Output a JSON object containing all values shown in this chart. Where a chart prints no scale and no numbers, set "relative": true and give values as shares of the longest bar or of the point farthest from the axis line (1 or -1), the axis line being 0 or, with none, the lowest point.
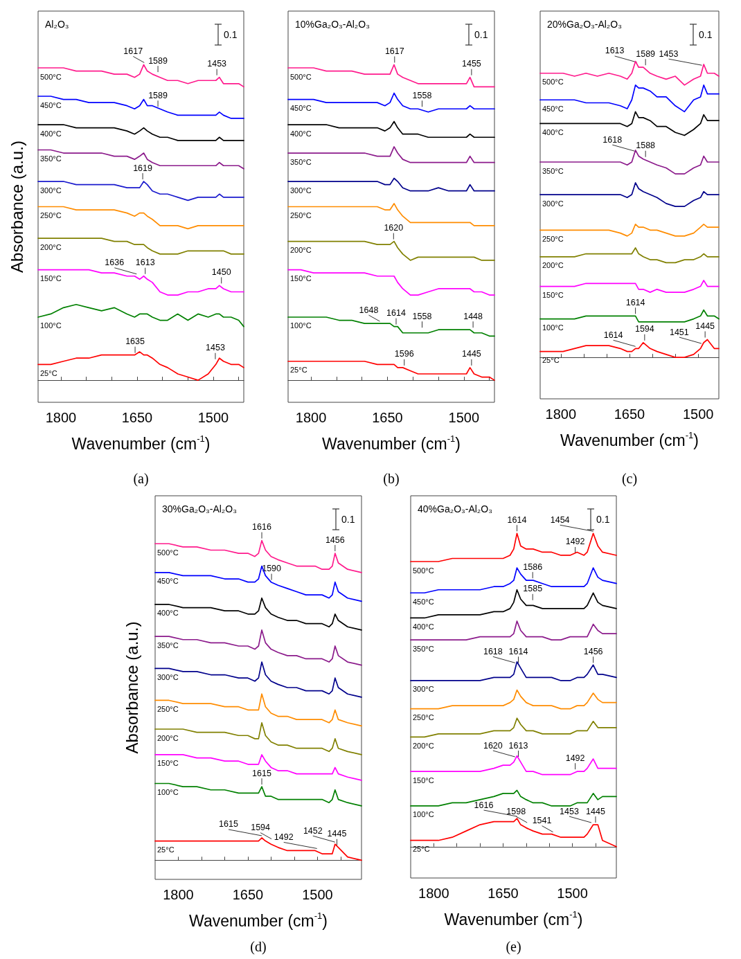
{
  "chart_data": [
    {
      "type": "line",
      "title": "Al₂O₃",
      "xlabel": "Wavenumber (cm$^{-1}$)",
      "ylabel": "Absorbance (a.u.)",
      "relative": true,
      "xlim": [
        1845,
        1440
      ],
      "xticks": [
        1800,
        1650,
        1500,
        {
          "value": 1750,
          "label": null
        },
        {
          "value": 1700,
          "label": null
        },
        {
          "value": 1600,
          "label": null
        },
        {
          "value": 1550,
          "label": null
        },
        {
          "value": 1450,
          "label": null
        }
      ],
      "x": [
        1845,
        1820,
        1795,
        1770,
        1745,
        1720,
        1695,
        1670,
        1655,
        1645,
        1637,
        1630,
        1620,
        1605,
        1590,
        1570,
        1550,
        1530,
        1510,
        1495,
        1488,
        1480,
        1465,
        1450,
        1440
      ],
      "series": [
        {
          "name": "500°C",
          "color": "#ff1a8c",
          "values": [
            0.99,
            0.99,
            0.99,
            0.98,
            0.98,
            0.98,
            0.97,
            0.97,
            0.96,
            0.97,
            1.0,
            0.98,
            0.97,
            0.96,
            0.95,
            0.95,
            0.94,
            0.95,
            0.95,
            0.95,
            0.96,
            0.94,
            0.94,
            0.94,
            0.93
          ]
        },
        {
          "name": "450°C",
          "color": "#0000ff",
          "values": [
            0.9,
            0.9,
            0.89,
            0.89,
            0.88,
            0.88,
            0.88,
            0.87,
            0.86,
            0.87,
            0.89,
            0.87,
            0.87,
            0.86,
            0.85,
            0.84,
            0.84,
            0.84,
            0.84,
            0.84,
            0.85,
            0.84,
            0.83,
            0.83,
            0.83
          ]
        },
        {
          "name": "400°C",
          "color": "#000000",
          "values": [
            0.81,
            0.81,
            0.81,
            0.8,
            0.8,
            0.8,
            0.8,
            0.79,
            0.78,
            0.79,
            0.8,
            0.79,
            0.78,
            0.77,
            0.77,
            0.76,
            0.76,
            0.76,
            0.76,
            0.76,
            0.77,
            0.76,
            0.76,
            0.76,
            0.76
          ]
        },
        {
          "name": "350°C",
          "color": "#8b1a8b",
          "values": [
            0.73,
            0.73,
            0.72,
            0.72,
            0.72,
            0.72,
            0.71,
            0.71,
            0.7,
            0.71,
            0.72,
            0.7,
            0.69,
            0.68,
            0.68,
            0.68,
            0.68,
            0.68,
            0.68,
            0.68,
            0.69,
            0.68,
            0.68,
            0.68,
            0.67
          ]
        },
        {
          "name": "300°C",
          "color": "#1a1acd",
          "values": [
            0.63,
            0.63,
            0.63,
            0.62,
            0.62,
            0.62,
            0.62,
            0.61,
            0.61,
            0.61,
            0.63,
            0.62,
            0.6,
            0.59,
            0.59,
            0.58,
            0.57,
            0.58,
            0.58,
            0.58,
            0.59,
            0.58,
            0.58,
            0.58,
            0.58
          ]
        },
        {
          "name": "250°C",
          "color": "#ff8c00",
          "values": [
            0.55,
            0.55,
            0.55,
            0.54,
            0.54,
            0.54,
            0.54,
            0.53,
            0.52,
            0.53,
            0.53,
            0.52,
            0.51,
            0.49,
            0.49,
            0.49,
            0.48,
            0.49,
            0.49,
            0.49,
            0.49,
            0.49,
            0.49,
            0.49,
            0.49
          ]
        },
        {
          "name": "200°C",
          "color": "#808000",
          "values": [
            0.45,
            0.45,
            0.45,
            0.45,
            0.45,
            0.45,
            0.44,
            0.44,
            0.43,
            0.43,
            0.43,
            0.42,
            0.41,
            0.4,
            0.4,
            0.4,
            0.41,
            0.41,
            0.41,
            0.41,
            0.41,
            0.41,
            0.4,
            0.4,
            0.4
          ]
        },
        {
          "name": "150°C",
          "color": "#ff00ff",
          "values": [
            0.35,
            0.35,
            0.35,
            0.35,
            0.35,
            0.34,
            0.34,
            0.33,
            0.33,
            0.32,
            0.33,
            0.32,
            0.31,
            0.28,
            0.27,
            0.27,
            0.28,
            0.28,
            0.29,
            0.29,
            0.3,
            0.29,
            0.28,
            0.28,
            0.28
          ]
        },
        {
          "name": "100°C",
          "color": "#008000",
          "values": [
            0.2,
            0.21,
            0.23,
            0.24,
            0.23,
            0.22,
            0.23,
            0.21,
            0.2,
            0.21,
            0.21,
            0.21,
            0.2,
            0.19,
            0.19,
            0.21,
            0.19,
            0.21,
            0.2,
            0.21,
            0.21,
            0.2,
            0.2,
            0.19,
            0.17
          ]
        },
        {
          "name": "25°C",
          "color": "#ff0000",
          "values": [
            0.05,
            0.05,
            0.06,
            0.07,
            0.07,
            0.08,
            0.08,
            0.08,
            0.08,
            0.09,
            0.08,
            0.08,
            0.07,
            0.05,
            0.04,
            0.02,
            0.01,
            0.0,
            0.02,
            0.05,
            0.07,
            0.06,
            0.05,
            0.05,
            0.04
          ]
        }
      ],
      "annotations": [
        "0.1",
        "(a)",
        {
          "text": "1617",
          "x": 1636,
          "y": 1.0
        },
        {
          "text": "1589",
          "x": 1609,
          "y": 0.97
        },
        {
          "text": "1453",
          "x": 1493,
          "y": 0.96
        },
        {
          "text": "1589",
          "x": 1609,
          "y": 0.86
        },
        {
          "text": "1619",
          "x": 1639,
          "y": 0.63
        },
        {
          "text": "1636",
          "x": 1651,
          "y": 0.33
        },
        {
          "text": "1613",
          "x": 1634,
          "y": 0.33
        },
        {
          "text": "1450",
          "x": 1484,
          "y": 0.3
        },
        {
          "text": "1635",
          "x": 1654,
          "y": 0.08
        },
        {
          "text": "1453",
          "x": 1496,
          "y": 0.06
        }
      ]
    },
    {
      "type": "line",
      "title": "10%Ga₂O₃-Al₂O₃",
      "xlabel": "Wavenumber (cm$^{-1}$)",
      "relative": true,
      "xlim": [
        1845,
        1440
      ],
      "xticks": [
        1800,
        1650,
        1500,
        {
          "value": 1750,
          "label": null
        },
        {
          "value": 1700,
          "label": null
        },
        {
          "value": 1600,
          "label": null
        },
        {
          "value": 1550,
          "label": null
        },
        {
          "value": 1450,
          "label": null
        }
      ],
      "x": [
        1845,
        1820,
        1795,
        1770,
        1745,
        1720,
        1695,
        1670,
        1655,
        1645,
        1637,
        1630,
        1620,
        1605,
        1590,
        1570,
        1550,
        1530,
        1510,
        1495,
        1488,
        1480,
        1465,
        1450,
        1440
      ],
      "series": [
        {
          "name": "500°C",
          "color": "#ff1a8c",
          "values": [
            0.99,
            0.99,
            0.99,
            0.98,
            0.98,
            0.98,
            0.97,
            0.97,
            0.97,
            0.97,
            1.0,
            0.97,
            0.96,
            0.95,
            0.94,
            0.94,
            0.94,
            0.94,
            0.94,
            0.94,
            0.96,
            0.93,
            0.93,
            0.93,
            0.93
          ]
        },
        {
          "name": "450°C",
          "color": "#0000ff",
          "values": [
            0.89,
            0.89,
            0.89,
            0.88,
            0.88,
            0.88,
            0.88,
            0.88,
            0.87,
            0.88,
            0.91,
            0.89,
            0.87,
            0.86,
            0.86,
            0.85,
            0.86,
            0.86,
            0.86,
            0.86,
            0.87,
            0.86,
            0.86,
            0.86,
            0.86
          ]
        },
        {
          "name": "400°C",
          "color": "#000000",
          "values": [
            0.81,
            0.81,
            0.81,
            0.81,
            0.8,
            0.8,
            0.8,
            0.8,
            0.79,
            0.8,
            0.82,
            0.8,
            0.78,
            0.78,
            0.78,
            0.77,
            0.77,
            0.77,
            0.77,
            0.77,
            0.78,
            0.77,
            0.77,
            0.77,
            0.77
          ]
        },
        {
          "name": "350°C",
          "color": "#8b1a8b",
          "values": [
            0.72,
            0.72,
            0.72,
            0.72,
            0.72,
            0.72,
            0.72,
            0.71,
            0.71,
            0.71,
            0.74,
            0.72,
            0.7,
            0.69,
            0.69,
            0.69,
            0.69,
            0.69,
            0.69,
            0.69,
            0.71,
            0.69,
            0.69,
            0.69,
            0.69
          ]
        },
        {
          "name": "300°C",
          "color": "#00008b",
          "values": [
            0.63,
            0.63,
            0.63,
            0.63,
            0.63,
            0.63,
            0.63,
            0.63,
            0.62,
            0.62,
            0.64,
            0.63,
            0.61,
            0.6,
            0.6,
            0.6,
            0.61,
            0.6,
            0.6,
            0.6,
            0.62,
            0.6,
            0.6,
            0.6,
            0.6
          ]
        },
        {
          "name": "250°C",
          "color": "#ff8c00",
          "values": [
            0.55,
            0.55,
            0.55,
            0.55,
            0.55,
            0.55,
            0.55,
            0.55,
            0.54,
            0.54,
            0.56,
            0.54,
            0.52,
            0.5,
            0.5,
            0.5,
            0.5,
            0.5,
            0.5,
            0.5,
            0.5,
            0.49,
            0.49,
            0.49,
            0.49
          ]
        },
        {
          "name": "200°C",
          "color": "#808000",
          "values": [
            0.44,
            0.44,
            0.44,
            0.44,
            0.44,
            0.44,
            0.44,
            0.43,
            0.43,
            0.43,
            0.44,
            0.42,
            0.4,
            0.38,
            0.39,
            0.39,
            0.39,
            0.39,
            0.39,
            0.39,
            0.39,
            0.39,
            0.38,
            0.38,
            0.38
          ]
        },
        {
          "name": "150°C",
          "color": "#ff00ff",
          "values": [
            0.35,
            0.35,
            0.34,
            0.34,
            0.34,
            0.34,
            0.34,
            0.33,
            0.33,
            0.33,
            0.33,
            0.31,
            0.29,
            0.27,
            0.27,
            0.28,
            0.29,
            0.29,
            0.29,
            0.29,
            0.29,
            0.28,
            0.28,
            0.27,
            0.27
          ]
        },
        {
          "name": "100°C",
          "color": "#008000",
          "values": [
            0.2,
            0.2,
            0.2,
            0.2,
            0.19,
            0.19,
            0.18,
            0.18,
            0.18,
            0.18,
            0.17,
            0.17,
            0.15,
            0.15,
            0.15,
            0.15,
            0.16,
            0.16,
            0.16,
            0.16,
            0.16,
            0.15,
            0.15,
            0.14,
            0.14
          ]
        },
        {
          "name": "25°C",
          "color": "#ff0000",
          "values": [
            0.06,
            0.06,
            0.06,
            0.06,
            0.06,
            0.06,
            0.06,
            0.05,
            0.05,
            0.05,
            0.05,
            0.04,
            0.04,
            0.03,
            0.02,
            0.02,
            0.02,
            0.02,
            0.02,
            0.02,
            0.04,
            0.02,
            0.01,
            0.01,
            0.0
          ]
        }
      ],
      "annotations": [
        "0.1",
        "(b)",
        {
          "text": "1617",
          "x": 1636,
          "y": 1.0
        },
        {
          "text": "1455",
          "x": 1485,
          "y": 0.96
        },
        {
          "text": "1558",
          "x": 1582,
          "y": 0.86
        },
        {
          "text": "1620",
          "x": 1638,
          "y": 0.44
        },
        {
          "text": "1648",
          "x": 1665,
          "y": 0.18
        },
        {
          "text": "1614",
          "x": 1633,
          "y": 0.17
        },
        {
          "text": "1558",
          "x": 1582,
          "y": 0.16
        },
        {
          "text": "1448",
          "x": 1482,
          "y": 0.16
        },
        {
          "text": "1596",
          "x": 1617,
          "y": 0.04
        },
        {
          "text": "1445",
          "x": 1485,
          "y": 0.04
        }
      ]
    },
    {
      "type": "line",
      "title": "20%Ga₂O₃-Al₂O₃",
      "xlabel": "Wavenumber (cm$^{-1}$)",
      "relative": true,
      "xlim": [
        1845,
        1455
      ],
      "xticks": [
        1800,
        1650,
        1500,
        {
          "value": 1750,
          "label": null
        },
        {
          "value": 1700,
          "label": null
        },
        {
          "value": 1600,
          "label": null
        },
        {
          "value": 1550,
          "label": null
        }
      ],
      "x": [
        1845,
        1820,
        1795,
        1770,
        1745,
        1720,
        1695,
        1670,
        1655,
        1645,
        1637,
        1630,
        1620,
        1605,
        1590,
        1570,
        1550,
        1530,
        1510,
        1495,
        1488,
        1480,
        1465,
        1455
      ],
      "series": [
        {
          "name": "500°C",
          "color": "#ff1a8c",
          "values": [
            0.96,
            0.96,
            0.96,
            0.95,
            0.96,
            0.95,
            0.96,
            0.95,
            0.94,
            0.96,
            1.0,
            0.98,
            0.98,
            0.96,
            0.95,
            0.94,
            0.95,
            0.92,
            0.94,
            0.95,
            0.99,
            0.96,
            0.96,
            0.95
          ]
        },
        {
          "name": "450°C",
          "color": "#0000ff",
          "values": [
            0.87,
            0.87,
            0.87,
            0.87,
            0.86,
            0.86,
            0.86,
            0.85,
            0.84,
            0.87,
            0.92,
            0.91,
            0.91,
            0.9,
            0.88,
            0.88,
            0.85,
            0.83,
            0.87,
            0.88,
            0.92,
            0.89,
            0.89,
            0.89
          ]
        },
        {
          "name": "400°C",
          "color": "#000000",
          "values": [
            0.79,
            0.79,
            0.79,
            0.79,
            0.79,
            0.79,
            0.79,
            0.79,
            0.78,
            0.79,
            0.83,
            0.81,
            0.81,
            0.8,
            0.78,
            0.78,
            0.76,
            0.75,
            0.77,
            0.79,
            0.82,
            0.8,
            0.8,
            0.8
          ]
        },
        {
          "name": "350°C",
          "color": "#8b1a8b",
          "values": [
            0.66,
            0.66,
            0.66,
            0.66,
            0.66,
            0.66,
            0.66,
            0.66,
            0.65,
            0.66,
            0.7,
            0.68,
            0.67,
            0.66,
            0.65,
            0.64,
            0.62,
            0.62,
            0.64,
            0.65,
            0.68,
            0.66,
            0.66,
            0.66
          ]
        },
        {
          "name": "300°C",
          "color": "#00008b",
          "values": [
            0.55,
            0.55,
            0.55,
            0.55,
            0.55,
            0.55,
            0.55,
            0.55,
            0.54,
            0.55,
            0.59,
            0.57,
            0.56,
            0.55,
            0.54,
            0.52,
            0.51,
            0.51,
            0.53,
            0.54,
            0.56,
            0.55,
            0.55,
            0.55
          ]
        },
        {
          "name": "250°C",
          "color": "#ff8c00",
          "values": [
            0.43,
            0.43,
            0.43,
            0.43,
            0.43,
            0.43,
            0.43,
            0.42,
            0.41,
            0.42,
            0.45,
            0.44,
            0.44,
            0.43,
            0.43,
            0.42,
            0.41,
            0.41,
            0.42,
            0.44,
            0.45,
            0.44,
            0.44,
            0.44
          ]
        },
        {
          "name": "200°C",
          "color": "#808000",
          "values": [
            0.34,
            0.34,
            0.34,
            0.34,
            0.35,
            0.35,
            0.35,
            0.35,
            0.35,
            0.35,
            0.37,
            0.35,
            0.34,
            0.33,
            0.33,
            0.32,
            0.32,
            0.33,
            0.33,
            0.34,
            0.35,
            0.34,
            0.34,
            0.34
          ]
        },
        {
          "name": "150°C",
          "color": "#ff00ff",
          "values": [
            0.24,
            0.24,
            0.24,
            0.24,
            0.25,
            0.25,
            0.25,
            0.25,
            0.25,
            0.25,
            0.25,
            0.23,
            0.23,
            0.22,
            0.23,
            0.22,
            0.22,
            0.22,
            0.23,
            0.24,
            0.26,
            0.24,
            0.24,
            0.24
          ]
        },
        {
          "name": "100°C",
          "color": "#008000",
          "values": [
            0.13,
            0.13,
            0.13,
            0.13,
            0.14,
            0.14,
            0.14,
            0.14,
            0.14,
            0.14,
            0.14,
            0.12,
            0.12,
            0.12,
            0.12,
            0.12,
            0.12,
            0.12,
            0.13,
            0.14,
            0.16,
            0.14,
            0.14,
            0.13
          ]
        },
        {
          "name": "25°C",
          "color": "#ff0000",
          "values": [
            0.02,
            0.02,
            0.02,
            0.03,
            0.04,
            0.04,
            0.04,
            0.03,
            0.02,
            0.02,
            0.03,
            0.03,
            0.05,
            0.03,
            0.02,
            0.01,
            0.0,
            0.0,
            0.01,
            0.03,
            0.05,
            0.06,
            0.03,
            0.03
          ]
        }
      ],
      "annotations": [
        "0.1",
        "(c)",
        {
          "text": "1613",
          "x": 1634,
          "y": 0.99
        },
        {
          "text": "1589",
          "x": 1615,
          "y": 0.98
        },
        {
          "text": "1453",
          "x": 1492,
          "y": 0.98
        },
        {
          "text": "1618",
          "x": 1639,
          "y": 0.69
        },
        {
          "text": "1588",
          "x": 1615,
          "y": 0.67
        },
        {
          "text": "1614",
          "x": 1637,
          "y": 0.14
        },
        {
          "text": "1614",
          "x": 1637,
          "y": 0.03
        },
        {
          "text": "1594",
          "x": 1617,
          "y": 0.05
        },
        {
          "text": "1451",
          "x": 1493,
          "y": 0.04
        },
        {
          "text": "1445",
          "x": 1485,
          "y": 0.06
        }
      ]
    },
    {
      "type": "line",
      "title": "30%Ga₂O₃-Al₂O₃",
      "xlabel": "Wavenumber (cm$^{-1}$)",
      "ylabel": "Absorbance (a.u.)",
      "relative": true,
      "xlim": [
        1850,
        1405
      ],
      "xticks": [
        1800,
        1650,
        1500,
        {
          "value": 1750,
          "label": null
        },
        {
          "value": 1700,
          "label": null
        },
        {
          "value": 1600,
          "label": null
        },
        {
          "value": 1550,
          "label": null
        },
        {
          "value": 1450,
          "label": null
        }
      ],
      "x": [
        1850,
        1820,
        1790,
        1760,
        1730,
        1700,
        1670,
        1650,
        1635,
        1627,
        1620,
        1612,
        1600,
        1585,
        1565,
        1545,
        1525,
        1505,
        1490,
        1475,
        1468,
        1462,
        1455,
        1435,
        1405
      ],
      "series": [
        {
          "name": "500°C",
          "color": "#ff1a8c",
          "values": [
            0.99,
            0.99,
            0.98,
            0.98,
            0.97,
            0.97,
            0.96,
            0.96,
            0.95,
            0.96,
            1.0,
            0.97,
            0.95,
            0.94,
            0.93,
            0.92,
            0.92,
            0.92,
            0.91,
            0.91,
            0.92,
            0.96,
            0.93,
            0.91,
            0.9
          ]
        },
        {
          "name": "450°C",
          "color": "#0000ff",
          "values": [
            0.9,
            0.9,
            0.89,
            0.89,
            0.89,
            0.88,
            0.88,
            0.87,
            0.87,
            0.88,
            0.92,
            0.89,
            0.87,
            0.86,
            0.85,
            0.84,
            0.83,
            0.83,
            0.83,
            0.82,
            0.83,
            0.87,
            0.84,
            0.82,
            0.81
          ]
        },
        {
          "name": "400°C",
          "color": "#000000",
          "values": [
            0.8,
            0.8,
            0.79,
            0.79,
            0.79,
            0.78,
            0.78,
            0.77,
            0.77,
            0.78,
            0.82,
            0.79,
            0.77,
            0.76,
            0.75,
            0.75,
            0.74,
            0.74,
            0.74,
            0.73,
            0.74,
            0.77,
            0.75,
            0.73,
            0.72
          ]
        },
        {
          "name": "350°C",
          "color": "#8b1a8b",
          "values": [
            0.7,
            0.7,
            0.69,
            0.69,
            0.68,
            0.68,
            0.67,
            0.67,
            0.66,
            0.67,
            0.72,
            0.68,
            0.66,
            0.65,
            0.64,
            0.64,
            0.63,
            0.63,
            0.63,
            0.62,
            0.63,
            0.67,
            0.64,
            0.62,
            0.61
          ]
        },
        {
          "name": "300°C",
          "color": "#00008b",
          "values": [
            0.6,
            0.6,
            0.59,
            0.59,
            0.58,
            0.58,
            0.57,
            0.57,
            0.56,
            0.57,
            0.62,
            0.58,
            0.56,
            0.55,
            0.54,
            0.54,
            0.53,
            0.53,
            0.53,
            0.52,
            0.53,
            0.57,
            0.54,
            0.52,
            0.51
          ]
        },
        {
          "name": "250°C",
          "color": "#ff8c00",
          "values": [
            0.5,
            0.5,
            0.49,
            0.49,
            0.49,
            0.48,
            0.48,
            0.47,
            0.47,
            0.47,
            0.52,
            0.48,
            0.46,
            0.45,
            0.45,
            0.44,
            0.44,
            0.44,
            0.44,
            0.43,
            0.44,
            0.47,
            0.44,
            0.43,
            0.42
          ]
        },
        {
          "name": "200°C",
          "color": "#808000",
          "values": [
            0.41,
            0.41,
            0.41,
            0.4,
            0.4,
            0.4,
            0.39,
            0.39,
            0.38,
            0.38,
            0.43,
            0.39,
            0.37,
            0.36,
            0.36,
            0.35,
            0.35,
            0.35,
            0.35,
            0.34,
            0.35,
            0.38,
            0.35,
            0.34,
            0.33
          ]
        },
        {
          "name": "150°C",
          "color": "#ff00ff",
          "values": [
            0.33,
            0.33,
            0.33,
            0.32,
            0.32,
            0.31,
            0.31,
            0.3,
            0.3,
            0.3,
            0.33,
            0.31,
            0.29,
            0.28,
            0.28,
            0.27,
            0.27,
            0.27,
            0.27,
            0.27,
            0.27,
            0.29,
            0.27,
            0.26,
            0.25
          ]
        },
        {
          "name": "100°C",
          "color": "#008000",
          "values": [
            0.24,
            0.24,
            0.23,
            0.23,
            0.22,
            0.22,
            0.21,
            0.21,
            0.21,
            0.21,
            0.23,
            0.2,
            0.2,
            0.19,
            0.19,
            0.19,
            0.19,
            0.19,
            0.19,
            0.18,
            0.19,
            0.22,
            0.19,
            0.18,
            0.17
          ]
        },
        {
          "name": "25°C",
          "color": "#ff0000",
          "values": [
            0.06,
            0.06,
            0.06,
            0.06,
            0.06,
            0.06,
            0.06,
            0.06,
            0.06,
            0.06,
            0.07,
            0.06,
            0.05,
            0.04,
            0.03,
            0.03,
            0.03,
            0.03,
            0.02,
            0.02,
            0.02,
            0.05,
            0.04,
            0.01,
            0.0
          ]
        }
      ],
      "annotations": [
        "0.1",
        "(d)",
        {
          "text": "1616",
          "x": 1620,
          "y": 1.0
        },
        {
          "text": "1456",
          "x": 1462,
          "y": 0.96
        },
        {
          "text": "1590",
          "x": 1599,
          "y": 0.87
        },
        {
          "text": "1615",
          "x": 1620,
          "y": 0.23
        },
        {
          "text": "1615",
          "x": 1620,
          "y": 0.07
        },
        {
          "text": "1594",
          "x": 1599,
          "y": 0.06
        },
        {
          "text": "1492",
          "x": 1501,
          "y": 0.03
        },
        {
          "text": "1452",
          "x": 1462,
          "y": 0.05
        },
        {
          "text": "1445",
          "x": 1458,
          "y": 0.04
        }
      ]
    },
    {
      "type": "line",
      "title": "40%Ga₂O₃-Al₂O₃",
      "xlabel": "Wavenumber (cm$^{-1}$)",
      "relative": true,
      "xlim": [
        1850,
        1405
      ],
      "xticks": [
        1800,
        1650,
        1500,
        {
          "value": 1750,
          "label": null
        },
        {
          "value": 1700,
          "label": null
        },
        {
          "value": 1600,
          "label": null
        },
        {
          "value": 1550,
          "label": null
        },
        {
          "value": 1450,
          "label": null
        }
      ],
      "x": [
        1850,
        1820,
        1790,
        1760,
        1730,
        1700,
        1670,
        1650,
        1635,
        1627,
        1620,
        1612,
        1600,
        1585,
        1565,
        1545,
        1525,
        1505,
        1490,
        1475,
        1468,
        1455,
        1445,
        1435,
        1405
      ],
      "series": [
        {
          "name": "500°C",
          "color": "#ff0000",
          "values": [
            0.91,
            0.91,
            0.91,
            0.92,
            0.92,
            0.92,
            0.92,
            0.92,
            0.93,
            0.95,
            1.0,
            0.96,
            0.95,
            0.95,
            0.94,
            0.94,
            0.93,
            0.93,
            0.94,
            0.93,
            0.94,
            1.0,
            0.96,
            0.94,
            0.93
          ]
        },
        {
          "name": "450°C",
          "color": "#0000ff",
          "values": [
            0.81,
            0.81,
            0.82,
            0.82,
            0.82,
            0.82,
            0.83,
            0.83,
            0.84,
            0.85,
            0.89,
            0.87,
            0.85,
            0.85,
            0.84,
            0.83,
            0.83,
            0.83,
            0.83,
            0.83,
            0.84,
            0.89,
            0.86,
            0.85,
            0.84
          ]
        },
        {
          "name": "400°C",
          "color": "#000000",
          "values": [
            0.73,
            0.73,
            0.74,
            0.74,
            0.74,
            0.74,
            0.75,
            0.75,
            0.76,
            0.78,
            0.82,
            0.79,
            0.77,
            0.77,
            0.76,
            0.76,
            0.76,
            0.76,
            0.76,
            0.76,
            0.77,
            0.81,
            0.78,
            0.77,
            0.76
          ]
        },
        {
          "name": "350°C",
          "color": "#8b1a8b",
          "values": [
            0.66,
            0.66,
            0.66,
            0.66,
            0.66,
            0.67,
            0.67,
            0.67,
            0.67,
            0.68,
            0.72,
            0.69,
            0.67,
            0.67,
            0.67,
            0.66,
            0.66,
            0.67,
            0.67,
            0.67,
            0.67,
            0.71,
            0.69,
            0.68,
            0.68
          ]
        },
        {
          "name": "300°C",
          "color": "#00008b",
          "values": [
            0.53,
            0.53,
            0.53,
            0.53,
            0.53,
            0.53,
            0.54,
            0.54,
            0.54,
            0.55,
            0.59,
            0.57,
            0.54,
            0.54,
            0.54,
            0.54,
            0.53,
            0.53,
            0.54,
            0.54,
            0.55,
            0.58,
            0.55,
            0.55,
            0.54
          ]
        },
        {
          "name": "250°C",
          "color": "#ff8c00",
          "values": [
            0.44,
            0.44,
            0.44,
            0.45,
            0.45,
            0.45,
            0.45,
            0.45,
            0.46,
            0.47,
            0.5,
            0.48,
            0.46,
            0.45,
            0.45,
            0.45,
            0.44,
            0.44,
            0.45,
            0.45,
            0.46,
            0.49,
            0.47,
            0.46,
            0.46
          ]
        },
        {
          "name": "200°C",
          "color": "#808000",
          "values": [
            0.35,
            0.35,
            0.36,
            0.36,
            0.36,
            0.36,
            0.37,
            0.37,
            0.37,
            0.38,
            0.41,
            0.39,
            0.37,
            0.37,
            0.36,
            0.36,
            0.36,
            0.36,
            0.37,
            0.37,
            0.37,
            0.4,
            0.38,
            0.38,
            0.38
          ]
        },
        {
          "name": "150°C",
          "color": "#ff00ff",
          "values": [
            0.24,
            0.24,
            0.24,
            0.24,
            0.24,
            0.24,
            0.25,
            0.26,
            0.26,
            0.27,
            0.29,
            0.27,
            0.24,
            0.24,
            0.23,
            0.23,
            0.23,
            0.23,
            0.24,
            0.24,
            0.25,
            0.28,
            0.25,
            0.25,
            0.25
          ]
        },
        {
          "name": "100°C",
          "color": "#008000",
          "values": [
            0.13,
            0.13,
            0.13,
            0.14,
            0.14,
            0.15,
            0.16,
            0.17,
            0.17,
            0.17,
            0.18,
            0.16,
            0.15,
            0.14,
            0.14,
            0.13,
            0.13,
            0.13,
            0.14,
            0.14,
            0.14,
            0.17,
            0.15,
            0.16,
            0.16
          ]
        },
        {
          "name": "25°C",
          "color": "#ff0000",
          "values": [
            0.02,
            0.02,
            0.02,
            0.03,
            0.05,
            0.07,
            0.08,
            0.08,
            0.08,
            0.08,
            0.09,
            0.07,
            0.06,
            0.05,
            0.04,
            0.04,
            0.03,
            0.03,
            0.03,
            0.03,
            0.04,
            0.07,
            0.07,
            0.02,
            0.0
          ]
        }
      ],
      "annotations": [
        "0.1",
        "(e)",
        {
          "text": "1614",
          "x": 1620,
          "y": 1.0
        },
        {
          "text": "1492",
          "x": 1494,
          "y": 0.93
        },
        {
          "text": "1454",
          "x": 1455,
          "y": 1.0
        },
        {
          "text": "1586",
          "x": 1586,
          "y": 0.85
        },
        {
          "text": "1585",
          "x": 1586,
          "y": 0.78
        },
        {
          "text": "1618",
          "x": 1624,
          "y": 0.58
        },
        {
          "text": "1614",
          "x": 1617,
          "y": 0.58
        },
        {
          "text": "1456",
          "x": 1455,
          "y": 0.58
        },
        {
          "text": "1620",
          "x": 1624,
          "y": 0.28
        },
        {
          "text": "1613",
          "x": 1617,
          "y": 0.28
        },
        {
          "text": "1492",
          "x": 1494,
          "y": 0.24
        },
        {
          "text": "1616",
          "x": 1620,
          "y": 0.09
        },
        {
          "text": "1598",
          "x": 1598,
          "y": 0.07
        },
        {
          "text": "1541",
          "x": 1542,
          "y": 0.04
        },
        {
          "text": "1453",
          "x": 1459,
          "y": 0.07
        },
        {
          "text": "1445",
          "x": 1450,
          "y": 0.07
        }
      ]
    }
  ]
}
